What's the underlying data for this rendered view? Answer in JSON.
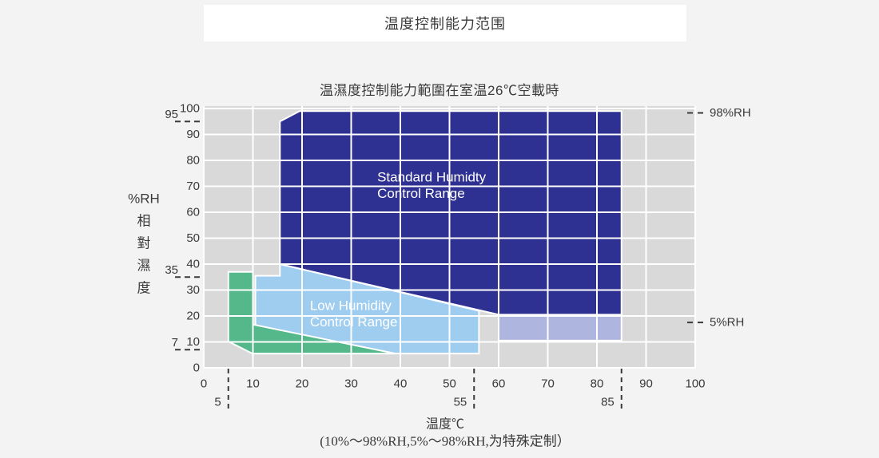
{
  "title_bar": {
    "text": "温度控制能力范围"
  },
  "chart_data": {
    "type": "area",
    "title": "温濕度控制能力範圍在室温26℃空載時",
    "xlabel": "温度℃",
    "ylabel_horizontal": "%RH",
    "ylabel_vertical": "相對濕度",
    "footnote": "(10%～98%RH,5%～98%RH,为特殊定制）",
    "xlim": [
      0,
      100
    ],
    "ylim": [
      0,
      100
    ],
    "x_ticks": [
      0,
      10,
      20,
      30,
      40,
      50,
      60,
      70,
      80,
      90,
      100
    ],
    "y_ticks": [
      0,
      10,
      20,
      30,
      40,
      50,
      60,
      70,
      80,
      90,
      100
    ],
    "x_dashed_marks": [
      5,
      55,
      85
    ],
    "y_dashed_marks": [
      95,
      35,
      7
    ],
    "grid": true,
    "legend_position": "none",
    "colors": {
      "plot_bg": "#d9d9d9",
      "grid_line": "#ffffff",
      "standard_region": "#2e3192",
      "low_region": "#9ecdf0",
      "special_green_region": "#54b88b",
      "extended_region": "#aeb6df",
      "text": "#3a3a3a"
    },
    "regions": [
      {
        "id": "low-humidity-region",
        "label_lines": [
          "Low Humidity",
          "Control Range"
        ],
        "color_key": "low_region",
        "points": [
          [
            10.5,
            35.5
          ],
          [
            15.5,
            35.5
          ],
          [
            15.5,
            40
          ],
          [
            56,
            22
          ],
          [
            56,
            5.5
          ],
          [
            10.5,
            5.5
          ]
        ],
        "label_anchor": [
          21.6,
          24.0
        ]
      },
      {
        "id": "special-green-region",
        "label_lines": [],
        "color_key": "special_green_region",
        "points": [
          [
            5,
            37
          ],
          [
            10,
            37
          ],
          [
            10,
            16.7
          ],
          [
            39,
            5.5
          ],
          [
            9.9,
            5.5
          ],
          [
            5,
            10.2
          ]
        ],
        "label_anchor": null
      },
      {
        "id": "extended-low-humidity-region",
        "label_lines": [],
        "color_key": "extended_region",
        "points": [
          [
            60,
            20.5
          ],
          [
            85,
            20.5
          ],
          [
            85,
            10.5
          ],
          [
            60,
            10.5
          ]
        ],
        "label_anchor": null
      },
      {
        "id": "standard-humidity-region",
        "label_lines": [
          "Standard Humidty",
          "Control Range"
        ],
        "color_key": "standard_region",
        "points": [
          [
            15.5,
            40
          ],
          [
            15.5,
            95
          ],
          [
            19.5,
            99
          ],
          [
            85,
            99
          ],
          [
            85,
            20.5
          ],
          [
            60,
            20.5
          ]
        ],
        "label_anchor": [
          35.3,
          73.5
        ]
      }
    ],
    "right_annotations": [
      {
        "label": "98%RH",
        "y": 98.3
      },
      {
        "label": "5%RH",
        "y": 17.5
      }
    ]
  }
}
